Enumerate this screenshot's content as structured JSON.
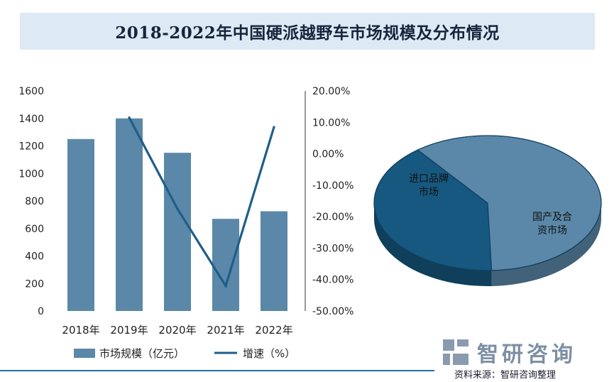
{
  "title": "2018-2022年中国硬派越野车市场规模及分布情况",
  "chart_data": [
    {
      "type": "bar",
      "categories": [
        "2018年",
        "2019年",
        "2020年",
        "2021年",
        "2022年"
      ],
      "series": [
        {
          "name": "市场规模（亿元）",
          "type": "bar",
          "axis": "left",
          "values": [
            1250,
            1400,
            1150,
            670,
            725
          ],
          "color": "#5b88a8"
        },
        {
          "name": "增速（%）",
          "type": "line",
          "axis": "right",
          "values": [
            null,
            11.5,
            -17.5,
            -42,
            8.5
          ],
          "color": "#1d5f8a"
        }
      ],
      "y_left": {
        "min": 0,
        "max": 1600,
        "ticks": [
          "0",
          "200",
          "400",
          "600",
          "800",
          "1000",
          "1200",
          "1400",
          "1600"
        ]
      },
      "y_right": {
        "min": -50,
        "max": 20,
        "ticks": [
          "-50.00%",
          "-40.00%",
          "-30.00%",
          "-20.00%",
          "-10.00%",
          "0.00%",
          "10.00%",
          "20.00%"
        ]
      },
      "grid": false,
      "legend": "bottom"
    },
    {
      "type": "pie",
      "style": "3d",
      "slices": [
        {
          "label": "国产及合\n资市场",
          "value": 60,
          "color": "#5b88a8"
        },
        {
          "label": "进口品牌\n市场",
          "value": 40,
          "color": "#16587f"
        }
      ]
    }
  ],
  "legend": {
    "bar_label": "市场规模（亿元）",
    "line_label": "增速（%）"
  },
  "logo_text": "智研咨询",
  "source": "资料来源：智研咨询整理",
  "colors": {
    "title_bg": "#dde9f4",
    "bar": "#5b88a8",
    "line": "#1d5f8a",
    "pie_dark": "#16587f",
    "pie_light": "#5b88a8",
    "accent_line": "#1f6fa8"
  }
}
